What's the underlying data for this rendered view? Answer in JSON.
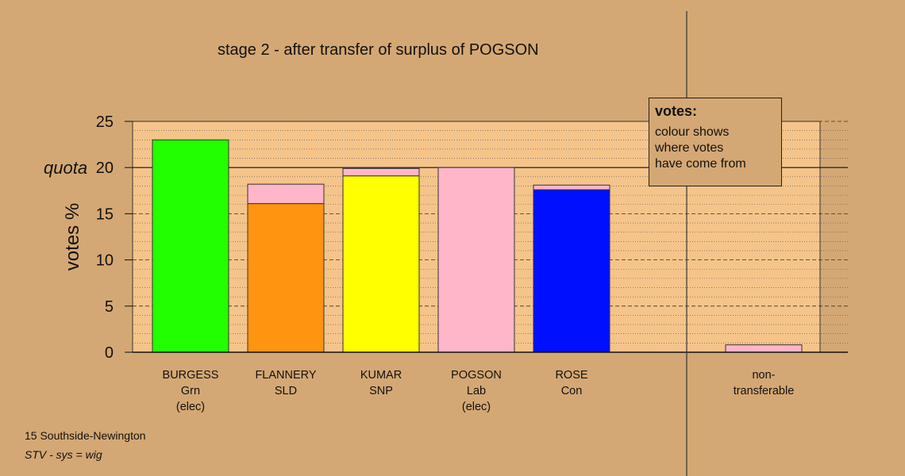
{
  "title": "stage 2 - after transfer of surplus of POGSON",
  "footer": {
    "line1": "15 Southside-Newington",
    "line2": "STV - sys = wig"
  },
  "legend_box": {
    "title": "votes:",
    "lines": [
      "colour shows",
      "where votes",
      "have come from"
    ]
  },
  "colors": {
    "background": "#d4a874",
    "plot_area": "#f5c48a",
    "transfer_pink": "#ffb6c8"
  },
  "chart_data": {
    "type": "bar",
    "title": "stage 2 - after transfer of surplus of POGSON",
    "ylabel": "votes %",
    "ylim": [
      0,
      25
    ],
    "yticks": [
      0,
      5,
      10,
      15,
      20,
      25
    ],
    "quota": 20,
    "quota_label": "quota",
    "candidates": [
      {
        "name": "BURGESS",
        "party": "Grn",
        "status": "(elec)",
        "segments": [
          {
            "value": 23.0,
            "color": "#22ff00"
          }
        ]
      },
      {
        "name": "FLANNERY",
        "party": "SLD",
        "status": "",
        "segments": [
          {
            "value": 16.1,
            "color": "#ff9410"
          },
          {
            "value": 2.1,
            "color": "#ffb6c8"
          }
        ]
      },
      {
        "name": "KUMAR",
        "party": "SNP",
        "status": "",
        "segments": [
          {
            "value": 19.1,
            "color": "#ffff00"
          },
          {
            "value": 0.8,
            "color": "#ffb6c8"
          }
        ]
      },
      {
        "name": "POGSON",
        "party": "Lab",
        "status": "(elec)",
        "segments": [
          {
            "value": 20.0,
            "color": "#ffb6c8"
          }
        ]
      },
      {
        "name": "ROSE",
        "party": "Con",
        "status": "",
        "segments": [
          {
            "value": 17.6,
            "color": "#0010ff"
          },
          {
            "value": 0.5,
            "color": "#ffb6c8"
          }
        ]
      }
    ],
    "nontransferable": {
      "label1": "non-",
      "label2": "transferable",
      "segments": [
        {
          "value": 0.8,
          "color": "#ffb6c8"
        }
      ]
    }
  }
}
